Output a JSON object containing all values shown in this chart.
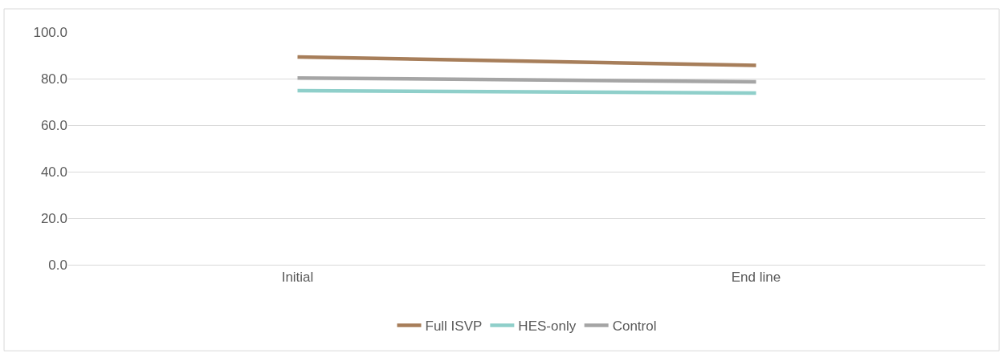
{
  "chart_data": {
    "type": "line",
    "categories": [
      "Initial",
      "End line"
    ],
    "series": [
      {
        "name": "Full ISVP",
        "color": "#a77e5a",
        "values": [
          89.3,
          85.7
        ]
      },
      {
        "name": "HES-only",
        "color": "#8fcfca",
        "values": [
          74.8,
          73.8
        ]
      },
      {
        "name": "Control",
        "color": "#a5a5a5",
        "values": [
          80.3,
          78.6
        ]
      }
    ],
    "ylim": [
      0,
      100
    ],
    "yticks": [
      {
        "value": 0,
        "label": "0.0"
      },
      {
        "value": 20,
        "label": "20.0"
      },
      {
        "value": 40,
        "label": "40.0"
      },
      {
        "value": 60,
        "label": "60.0"
      },
      {
        "value": 80,
        "label": "80.0"
      },
      {
        "value": 100,
        "label": "100.0"
      }
    ],
    "grid": "y",
    "legend": "bottom",
    "marker": "none",
    "line_style": "solid"
  }
}
